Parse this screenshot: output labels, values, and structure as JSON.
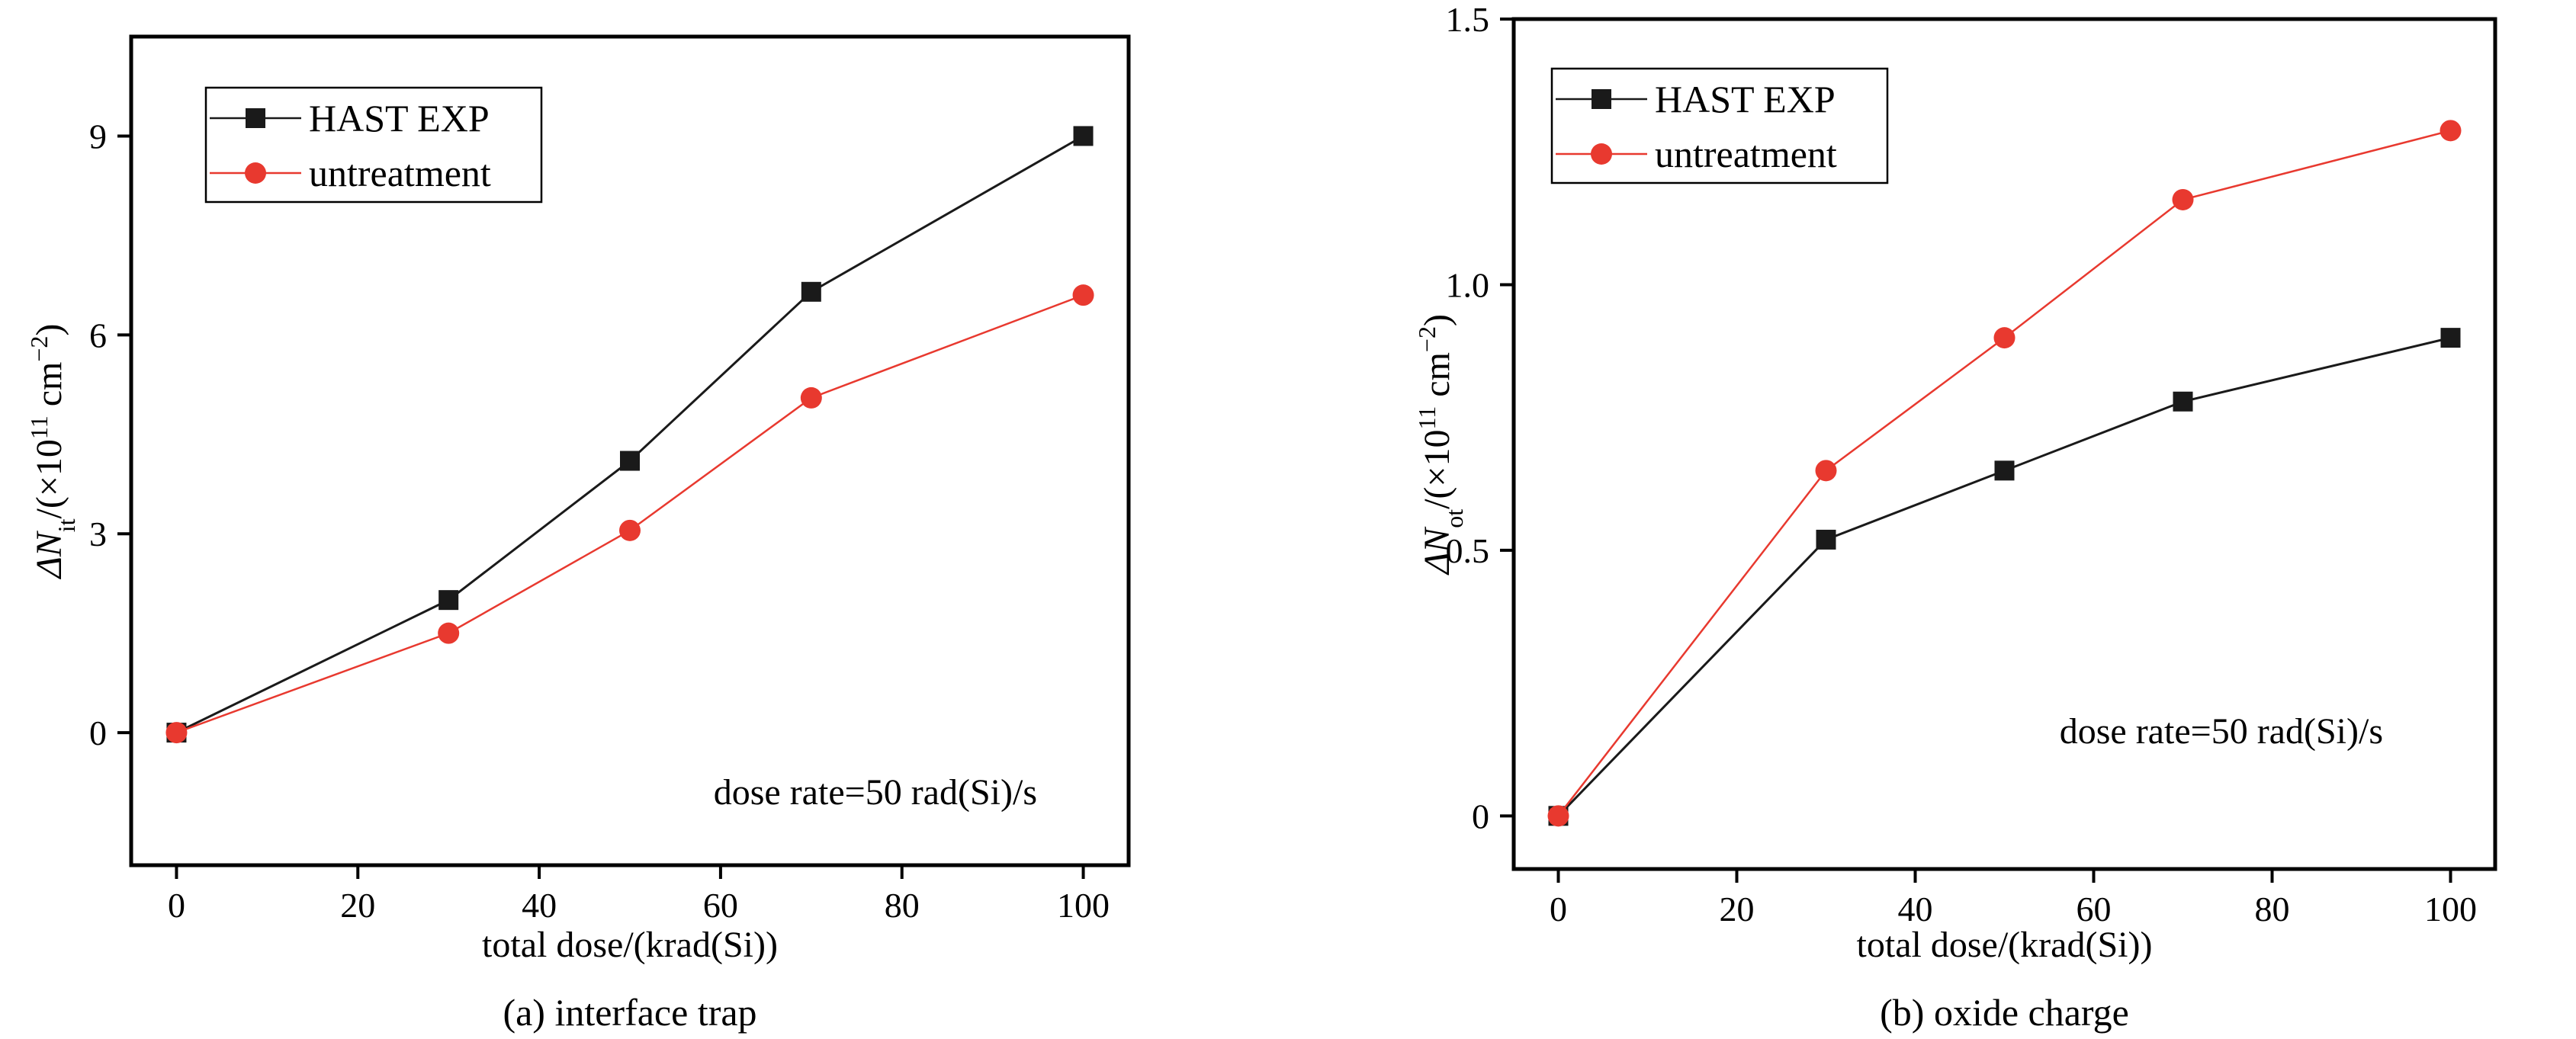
{
  "chart_data": [
    {
      "type": "line",
      "caption": "(a) interface trap",
      "xlabel": "total dose/(krad(Si))",
      "ylabel": {
        "prefix": "ΔN",
        "sub": "it",
        "mid": "/(×10",
        "sup1": "11",
        "unit": " cm",
        "sup2": "−2",
        "suffix": ")"
      },
      "xlim": [
        -5,
        105
      ],
      "ylim": [
        -2,
        10.5
      ],
      "xticks": [
        0,
        20,
        40,
        60,
        80,
        100
      ],
      "yticks": [
        0,
        3,
        6,
        9
      ],
      "xtick_labels": [
        "0",
        "20",
        "40",
        "60",
        "80",
        "100"
      ],
      "ytick_labels": [
        "0",
        "3",
        "6",
        "9"
      ],
      "annotation": "dose rate=50 rad(Si)/s",
      "legend_position": "top-left",
      "x": [
        0,
        30,
        50,
        70,
        100
      ],
      "series": [
        {
          "name": "HAST EXP",
          "values": [
            0.0,
            2.0,
            4.1,
            6.65,
            9.0
          ],
          "color": "#1a1a1a",
          "marker": "square"
        },
        {
          "name": "untreatment",
          "values": [
            0.0,
            1.5,
            3.05,
            5.05,
            6.6
          ],
          "color": "#e8392f",
          "marker": "circle"
        }
      ]
    },
    {
      "type": "line",
      "caption": "(b) oxide charge",
      "xlabel": "total dose/(krad(Si))",
      "ylabel": {
        "prefix": "ΔN",
        "sub": "ot",
        "mid": "/(×10",
        "sup1": "11",
        "unit": " cm",
        "sup2": "−2",
        "suffix": ")"
      },
      "xlim": [
        -5,
        105
      ],
      "ylim": [
        -0.1,
        1.5
      ],
      "xticks": [
        0,
        20,
        40,
        60,
        80,
        100
      ],
      "yticks": [
        0,
        0.5,
        1.0,
        1.5
      ],
      "xtick_labels": [
        "0",
        "20",
        "40",
        "60",
        "80",
        "100"
      ],
      "ytick_labels": [
        "0",
        "0.5",
        "1.0",
        "1.5"
      ],
      "annotation": "dose rate=50 rad(Si)/s",
      "legend_position": "top-left",
      "x": [
        0,
        30,
        50,
        70,
        100
      ],
      "series": [
        {
          "name": "HAST EXP",
          "values": [
            0.0,
            0.52,
            0.65,
            0.78,
            0.9
          ],
          "color": "#1a1a1a",
          "marker": "square"
        },
        {
          "name": "untreatment",
          "values": [
            0.0,
            0.65,
            0.9,
            1.16,
            1.29
          ],
          "color": "#e8392f",
          "marker": "circle"
        }
      ]
    }
  ]
}
